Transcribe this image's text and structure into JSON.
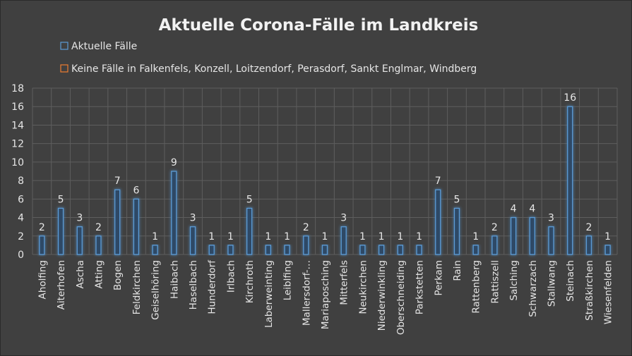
{
  "chart_data": {
    "type": "bar",
    "title": "Aktuelle Corona-Fälle im Landkreis",
    "legend": [
      {
        "name": "Aktuelle Fälle",
        "color": "#5b9bd5"
      },
      {
        "name": "Keine Fälle in Falkenfels, Konzell, Loitzendorf, Perasdorf, Sankt Englmar, Windberg",
        "color": "#ed7d31"
      }
    ],
    "legend_position": "top-left",
    "categories": [
      "Aholfing",
      "Aiterhofen",
      "Ascha",
      "Atting",
      "Bogen",
      "Feldkirchen",
      "Geiselhöring",
      "Haibach",
      "Haselbach",
      "Hunderdorf",
      "Irlbach",
      "Kirchroth",
      "Laberweinting",
      "Leiblfing",
      "Mallersdorf-…",
      "Mariaposching",
      "Mitterfels",
      "Neukirchen",
      "Niederwinkling",
      "Oberschneiding",
      "Parkstetten",
      "Perkam",
      "Rain",
      "Rattenberg",
      "Rattiszell",
      "Salching",
      "Schwarzach",
      "Stallwang",
      "Steinach",
      "Straßkirchen",
      "Wiesenfelden"
    ],
    "series": [
      {
        "name": "Aktuelle Fälle",
        "values": [
          2,
          5,
          3,
          2,
          7,
          6,
          1,
          9,
          3,
          1,
          1,
          5,
          1,
          1,
          2,
          1,
          3,
          1,
          1,
          1,
          1,
          7,
          5,
          1,
          2,
          4,
          4,
          3,
          16,
          2,
          1
        ]
      }
    ],
    "ylim": [
      0,
      18
    ],
    "yticks": [
      0,
      2,
      4,
      6,
      8,
      10,
      12,
      14,
      16,
      18
    ],
    "grid": true,
    "data_labels": true,
    "colors": {
      "background": "#404040",
      "bar_stroke": "#5b9bd5",
      "glow": "#3a6fa8"
    }
  }
}
